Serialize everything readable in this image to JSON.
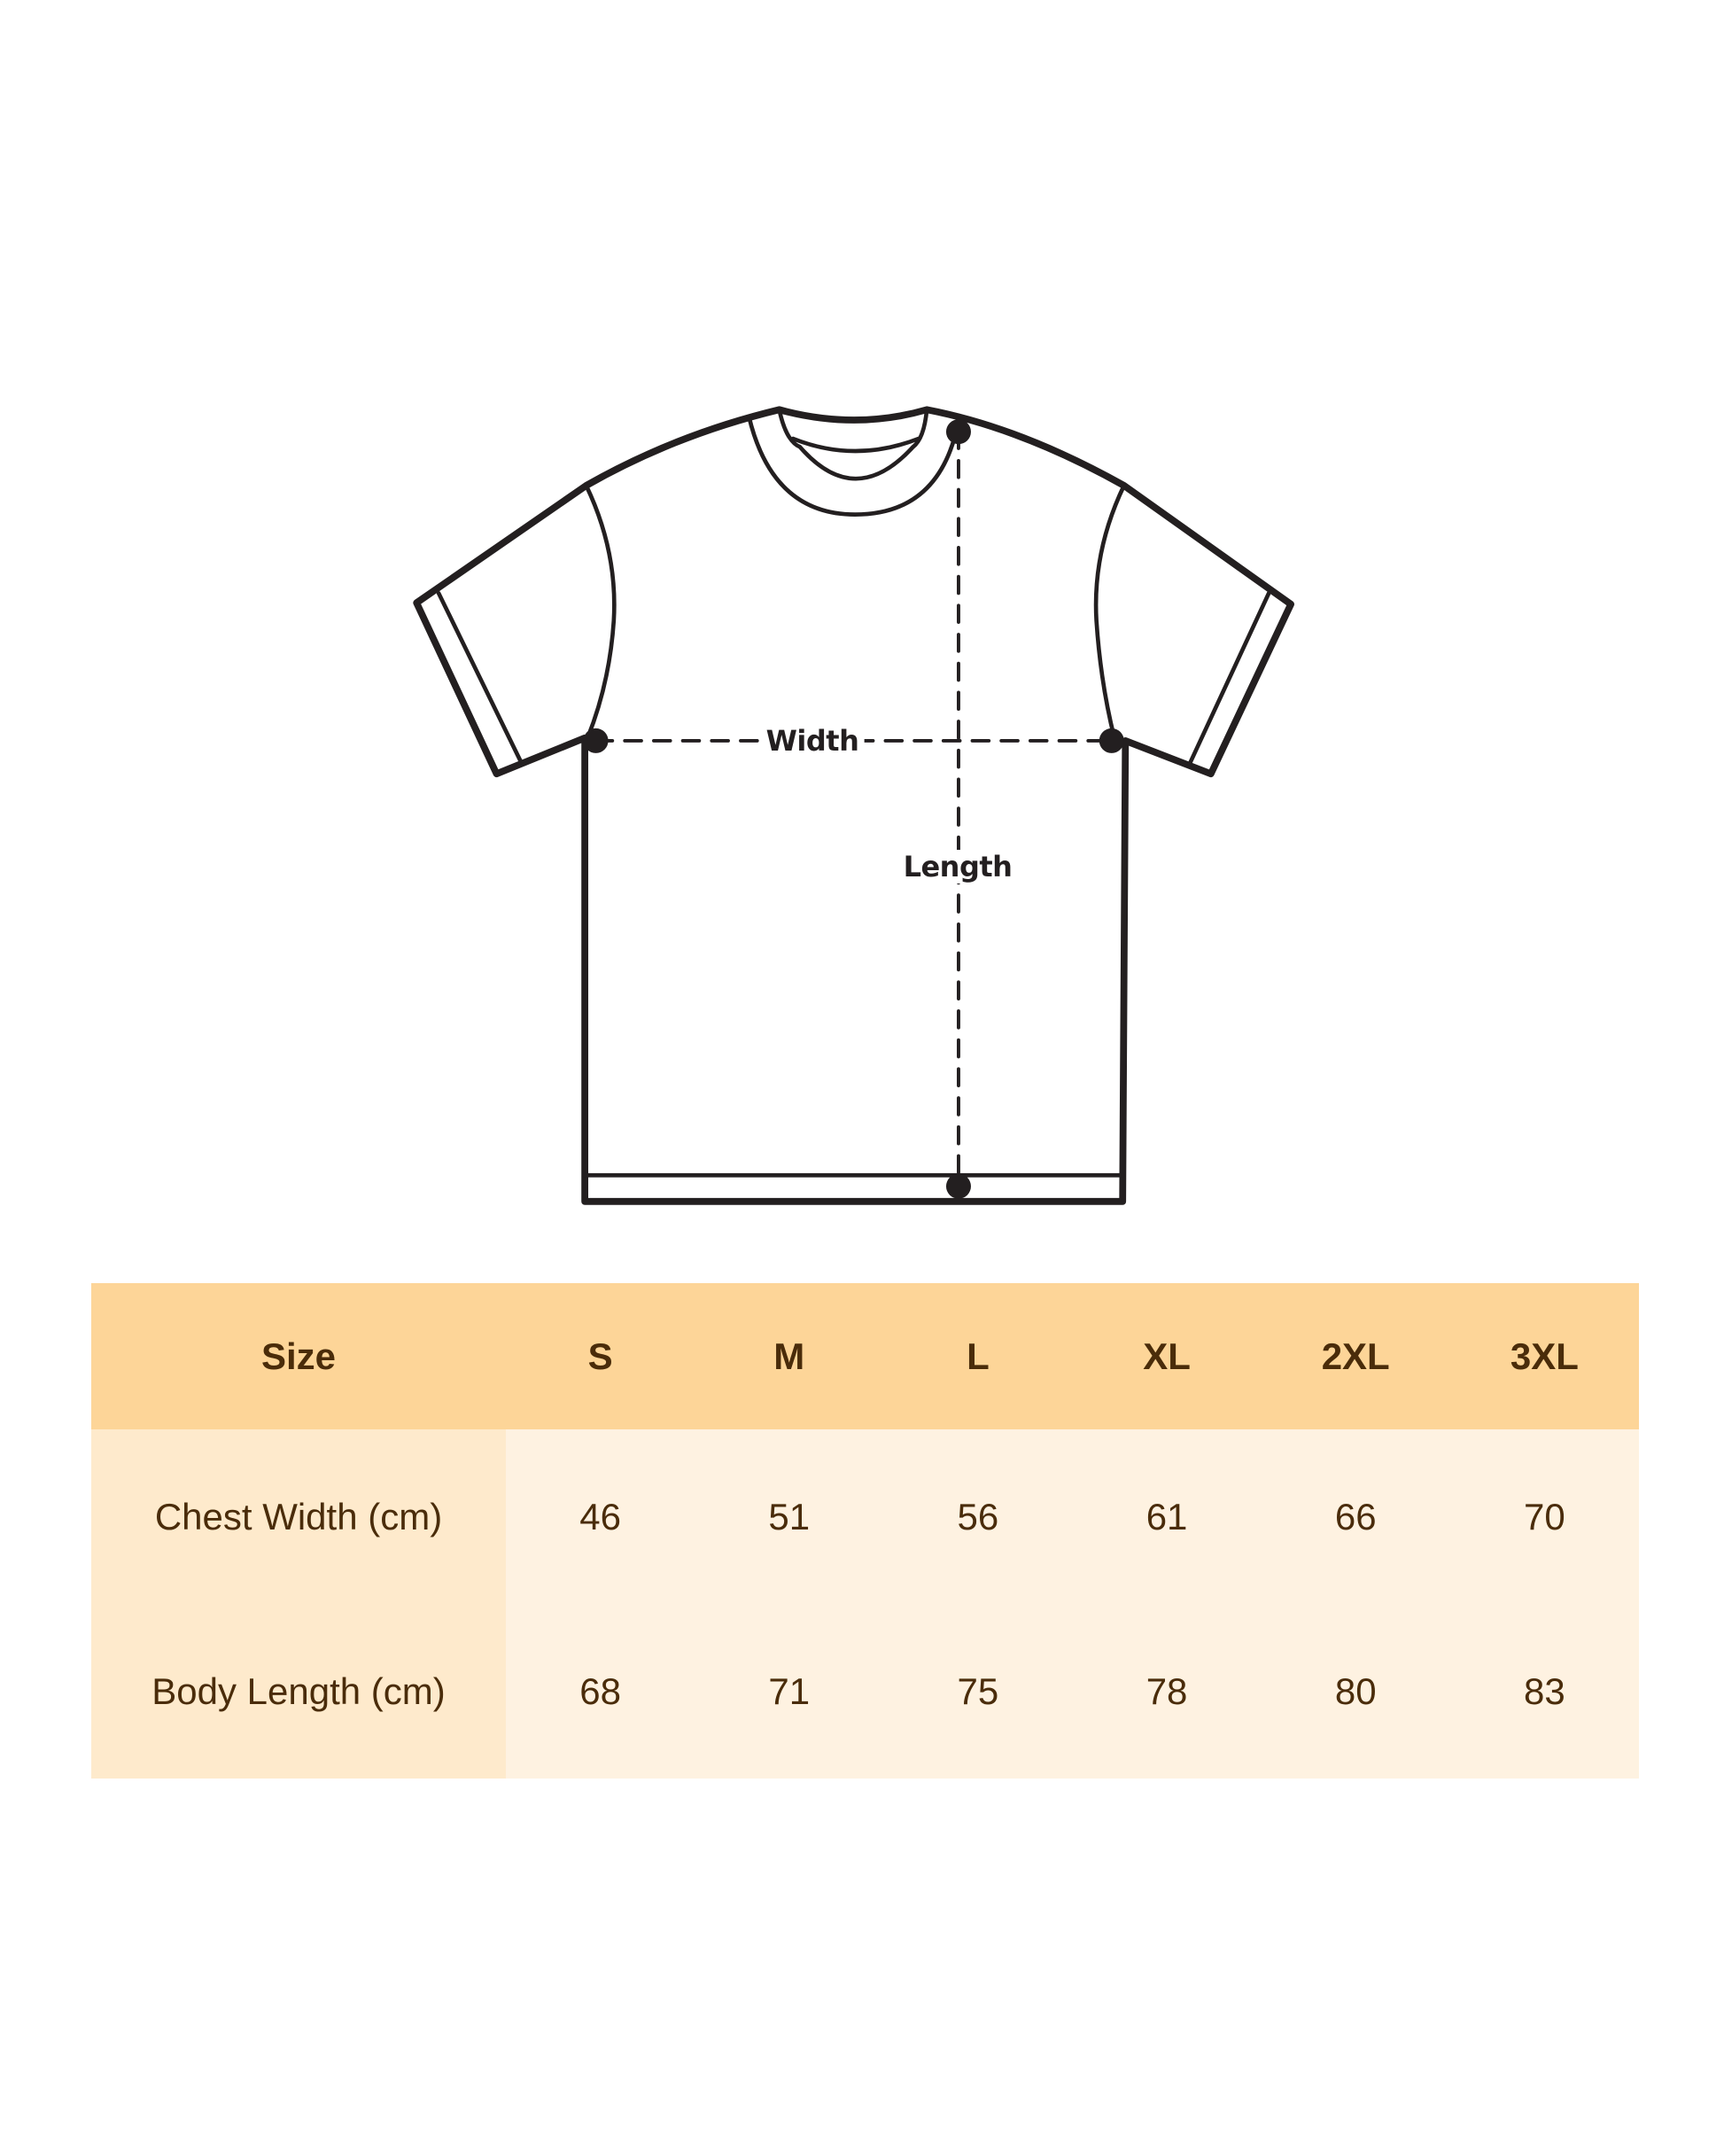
{
  "diagram": {
    "width_label": "Width",
    "length_label": "Length"
  },
  "colors": {
    "header_bg": "#fdd598",
    "label_col_bg": "#feeacc",
    "body_bg": "#fef2e1",
    "text": "#4a2c0a",
    "outline": "#231f20"
  },
  "table": {
    "headers": [
      "Size",
      "S",
      "M",
      "L",
      "XL",
      "2XL",
      "3XL"
    ],
    "rows": [
      {
        "label": "Chest Width (cm)",
        "values": [
          "46",
          "51",
          "56",
          "61",
          "66",
          "70"
        ]
      },
      {
        "label": "Body Length (cm)",
        "values": [
          "68",
          "71",
          "75",
          "78",
          "80",
          "83"
        ]
      }
    ]
  }
}
